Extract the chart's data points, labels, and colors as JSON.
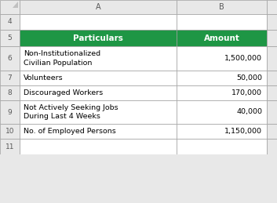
{
  "col_header_a": "Particulars",
  "col_header_b": "Amount",
  "header_bg": "#1E9645",
  "header_text_color": "#FFFFFF",
  "rows": [
    {
      "particulars": "Non-Institutionalized\nCivilian Population",
      "amount": "1,500,000",
      "row_label": "6"
    },
    {
      "particulars": "Volunteers",
      "amount": "50,000",
      "row_label": "7"
    },
    {
      "particulars": "Discouraged Workers",
      "amount": "170,000",
      "row_label": "8"
    },
    {
      "particulars": "Not Actively Seeking Jobs\nDuring Last 4 Weeks",
      "amount": "40,000",
      "row_label": "9"
    },
    {
      "particulars": "No. of Employed Persons",
      "amount": "1,150,000",
      "row_label": "10"
    }
  ],
  "bg_color": "#E8E8E8",
  "cell_bg": "#FFFFFF",
  "border_color": "#A0A0A0",
  "text_color": "#000000",
  "header_font_size": 7.5,
  "cell_font_size": 6.8,
  "row_label_font_size": 6.5,
  "col_label_font_size": 7.0,
  "corner_triangle_color": "#C0C0C0",
  "row_num_color": "#595959"
}
